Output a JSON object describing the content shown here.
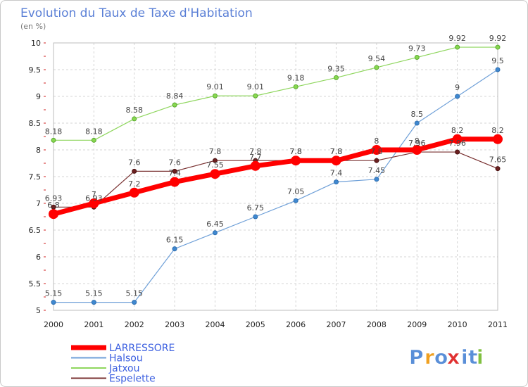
{
  "chart_data": {
    "type": "line",
    "title": "Evolution du Taux de Taxe d'Habitation",
    "subtitle": "(en %)",
    "xlabel": "",
    "ylabel": "",
    "ylim": [
      5,
      10
    ],
    "yticks": [
      "5",
      "5.5",
      "6",
      "6.5",
      "7",
      "7.5",
      "8",
      "8.5",
      "9",
      "9.5",
      "10"
    ],
    "categories": [
      "2000",
      "2001",
      "2002",
      "2003",
      "2004",
      "2005",
      "2006",
      "2007",
      "2008",
      "2009",
      "2010",
      "2011"
    ],
    "grid": true,
    "legend_position": "bottom-left",
    "series": [
      {
        "name": "LARRESSORE",
        "color": "#ff0000",
        "values": [
          6.8,
          7,
          7.2,
          7.4,
          7.55,
          7.7,
          7.8,
          7.8,
          8,
          8,
          8.2,
          8.2
        ]
      },
      {
        "name": "Halsou",
        "color": "#6fa0d8",
        "values": [
          5.15,
          5.15,
          5.15,
          6.15,
          6.45,
          6.75,
          7.05,
          7.4,
          7.45,
          8.5,
          9,
          9.5
        ]
      },
      {
        "name": "Jatxou",
        "color": "#8fd65e",
        "values": [
          8.18,
          8.18,
          8.58,
          8.84,
          9.01,
          9.01,
          9.18,
          9.35,
          9.54,
          9.73,
          9.92,
          9.92
        ]
      },
      {
        "name": "Espelette",
        "color": "#7a3232",
        "values": [
          6.93,
          6.93,
          7.6,
          7.6,
          7.8,
          7.8,
          7.8,
          7.8,
          7.8,
          7.96,
          7.96,
          7.65
        ]
      }
    ],
    "data_labels": [
      [
        "6.8",
        "7",
        "7.2",
        "7.4",
        "7.55",
        "7.7",
        "7.8",
        "7.8",
        "8",
        "8",
        "8.2",
        "8.2"
      ],
      [
        "5.15",
        "5.15",
        "5.15",
        "6.15",
        "6.45",
        "6.75",
        "7.05",
        "7.4",
        "7.45",
        "8.5",
        "9",
        "9.5"
      ],
      [
        "8.18",
        "8.18",
        "8.58",
        "8.84",
        "9.01",
        "9.01",
        "9.18",
        "9.35",
        "9.54",
        "9.73",
        "9.92",
        "9.92"
      ],
      [
        "6.93",
        "6.93",
        "7.6",
        "7.6",
        "7.8",
        "7.8",
        "7.8",
        "7.8",
        "7.8",
        "7.96",
        "7.96",
        "7.65"
      ]
    ]
  },
  "branding": {
    "logo_letters": [
      "P",
      "r",
      "o",
      "x",
      "i",
      "t",
      "i"
    ],
    "logo_colors": [
      "#5a8fd8",
      "#f0a020",
      "#5a8fd8",
      "#e03030",
      "#5a8fd8",
      "#5a8fd8",
      "#80c040"
    ]
  }
}
